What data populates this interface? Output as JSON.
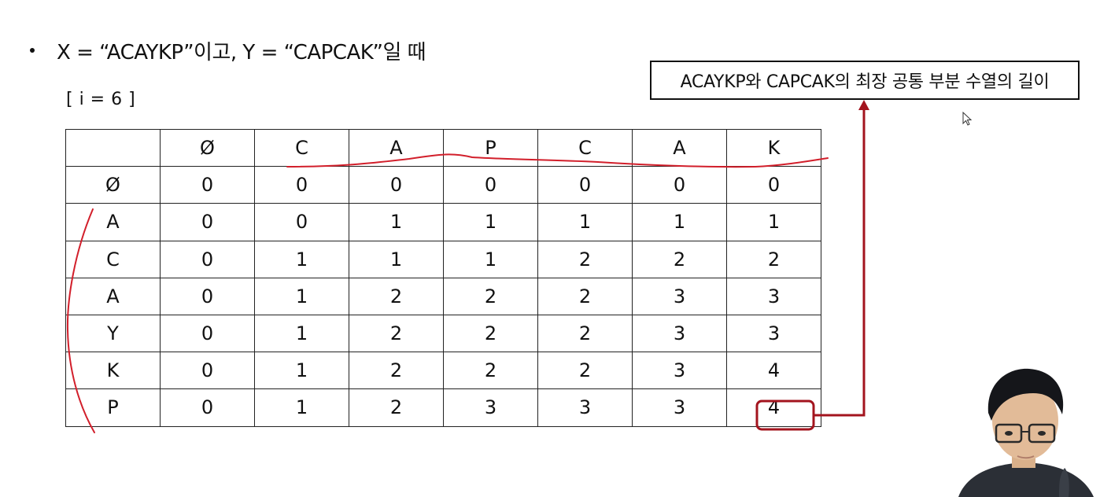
{
  "heading": {
    "text": "X = “ACAYKP”이고, Y = “CAPCAK”일 때"
  },
  "iteration_label": "[ i = 6 ]",
  "callout": {
    "text": "ACAYKP와 CAPCAK의 최장 공통 부분 수열의 길이"
  },
  "table": {
    "header": [
      "",
      "Ø",
      "C",
      "A",
      "P",
      "C",
      "A",
      "K"
    ],
    "rows": [
      {
        "label": "Ø",
        "values": [
          "0",
          "0",
          "0",
          "0",
          "0",
          "0",
          "0"
        ]
      },
      {
        "label": "A",
        "values": [
          "0",
          "0",
          "1",
          "1",
          "1",
          "1",
          "1"
        ]
      },
      {
        "label": "C",
        "values": [
          "0",
          "1",
          "1",
          "1",
          "2",
          "2",
          "2"
        ]
      },
      {
        "label": "A",
        "values": [
          "0",
          "1",
          "2",
          "2",
          "2",
          "3",
          "3"
        ]
      },
      {
        "label": "Y",
        "values": [
          "0",
          "1",
          "2",
          "2",
          "2",
          "3",
          "3"
        ]
      },
      {
        "label": "K",
        "values": [
          "0",
          "1",
          "2",
          "2",
          "2",
          "3",
          "4"
        ]
      },
      {
        "label": "P",
        "values": [
          "0",
          "1",
          "2",
          "3",
          "3",
          "3",
          "4"
        ]
      }
    ]
  },
  "colors": {
    "highlight": "#a3141e",
    "ink": "#d21f2b",
    "grid": "#222222"
  },
  "icons": {
    "cursor": "mouse-pointer-icon",
    "presenter": "presenter-webcam"
  }
}
